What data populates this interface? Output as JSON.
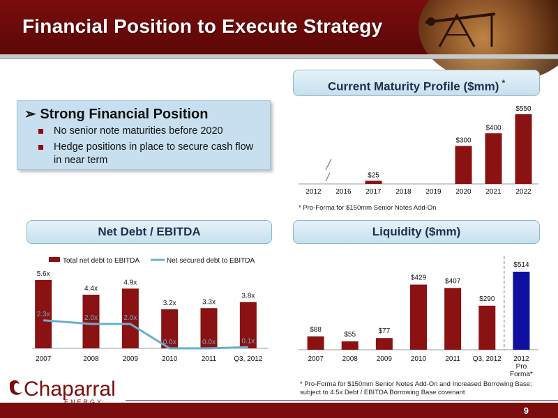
{
  "slide": {
    "title": "Financial Position to Execute Strategy",
    "page_number": "9",
    "brand_color": "#7a0d0d"
  },
  "bullets": {
    "arrow": "➢",
    "heading": "Strong Financial Position",
    "items": [
      "No senior note maturities before 2020",
      "Hedge positions in place to secure cash flow",
      "in near term"
    ]
  },
  "panels": {
    "maturity_title": "Current Maturity Profile ($mm)",
    "maturity_asterisk": "*",
    "maturity_note": "* Pro-Forma for $150mm Senior Notes Add-On",
    "netdebt_title": "Net Debt / EBITDA",
    "liquidity_title": "Liquidity ($mm)",
    "liquidity_note_1": "* Pro-Forma for $150mm Senior Notes Add-On and Increased Borrowing Base;",
    "liquidity_note_2": "subject to 4.5x Debt / EBITDA Borrowing Base covenant"
  },
  "logo": {
    "name": "Chaparral",
    "sub": "ENERGY"
  },
  "chart_data": [
    {
      "id": "maturity",
      "type": "bar",
      "categories": [
        "2012",
        "2016",
        "2017",
        "2018",
        "2019",
        "2020",
        "2021",
        "2022"
      ],
      "values": [
        null,
        null,
        25,
        null,
        null,
        300,
        400,
        550
      ],
      "labels": [
        "",
        "",
        "$25",
        "",
        "",
        "$300",
        "$400",
        "$550"
      ],
      "ylim": [
        0,
        550
      ],
      "axis_break": "between 2012 and 2016",
      "color": "#8b1212"
    },
    {
      "id": "net_debt",
      "type": "bar",
      "categories": [
        "2007",
        "2008",
        "2009",
        "2010",
        "2011",
        "Q3, 2012"
      ],
      "series": [
        {
          "name": "Total net debt to EBITDA",
          "values": [
            5.6,
            4.4,
            4.9,
            3.2,
            3.3,
            3.8
          ],
          "labels": [
            "5.6x",
            "4.4x",
            "4.9x",
            "3.2x",
            "3.3x",
            "3.8x"
          ],
          "color": "#8b1212",
          "kind": "bar"
        },
        {
          "name": "Net secured debt to EBITDA",
          "values": [
            2.3,
            2.0,
            2.0,
            0.0,
            0.0,
            0.1
          ],
          "labels": [
            "2.3x",
            "2.0x",
            "2.0x",
            "0.0x",
            "0.0x",
            "0.1x"
          ],
          "color": "#6aaed0",
          "kind": "line"
        }
      ],
      "ylim": [
        0,
        5.6
      ],
      "legend": "top"
    },
    {
      "id": "liquidity",
      "type": "bar",
      "categories": [
        "2007",
        "2008",
        "2009",
        "2010",
        "2011",
        "Q3, 2012",
        "2012 Pro Forma*"
      ],
      "category_lines": [
        [
          "2007"
        ],
        [
          "2008"
        ],
        [
          "2009"
        ],
        [
          "2010"
        ],
        [
          "2011"
        ],
        [
          "Q3, 2012"
        ],
        [
          "2012",
          "Pro",
          "Forma*"
        ]
      ],
      "values": [
        88,
        55,
        77,
        429,
        407,
        290,
        514
      ],
      "labels": [
        "$88",
        "$55",
        "$77",
        "$429",
        "$407",
        "$290",
        "$514"
      ],
      "colors": [
        "#8b1212",
        "#8b1212",
        "#8b1212",
        "#8b1212",
        "#8b1212",
        "#8b1212",
        "#1010a0"
      ],
      "ylim": [
        0,
        514
      ]
    }
  ]
}
